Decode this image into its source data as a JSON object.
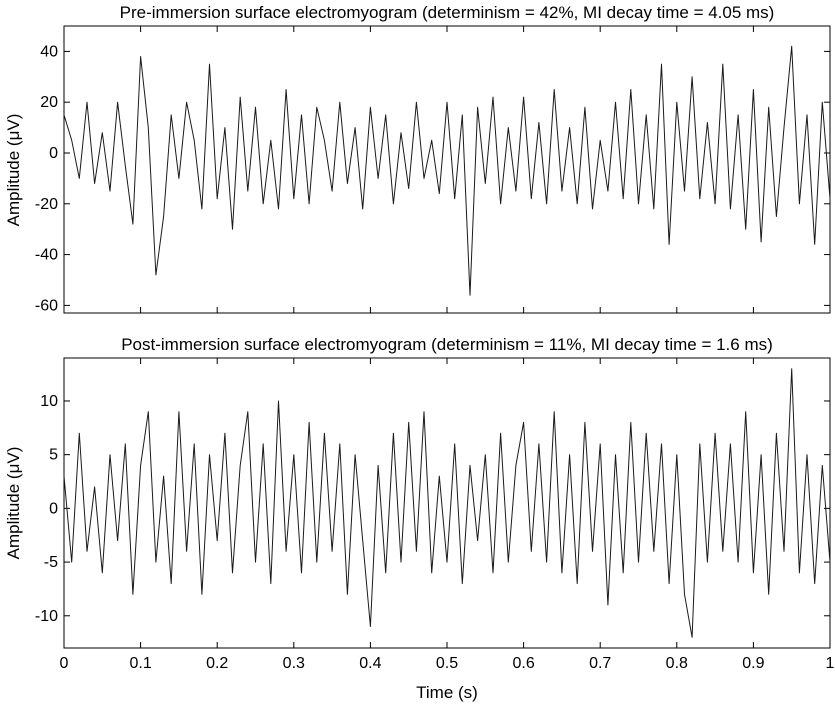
{
  "chart_data": [
    {
      "type": "line",
      "title": "Pre-immersion surface electromyogram (determinism = 42%, MI decay time = 4.05 ms)",
      "xlabel": "",
      "ylabel": "Amplitude (μV)",
      "xlim": [
        0,
        1
      ],
      "ylim": [
        -63,
        50
      ],
      "x_ticks": [
        0,
        0.1,
        0.2,
        0.3,
        0.4,
        0.5,
        0.6,
        0.7,
        0.8,
        0.9,
        1
      ],
      "x_tick_labels": [],
      "y_ticks": [
        -60,
        -40,
        -20,
        0,
        20,
        40
      ],
      "y_tick_labels": [
        "-60",
        "-40",
        "-20",
        "0",
        "20",
        "40"
      ],
      "grid": false,
      "series": [
        {
          "color": "#1a1a1a",
          "x": [
            0,
            0.01,
            0.02,
            0.03,
            0.04,
            0.05,
            0.06,
            0.07,
            0.08,
            0.09,
            0.1,
            0.11,
            0.12,
            0.13,
            0.14,
            0.15,
            0.16,
            0.17,
            0.18,
            0.19,
            0.2,
            0.21,
            0.22,
            0.23,
            0.24,
            0.25,
            0.26,
            0.27,
            0.28,
            0.29,
            0.3,
            0.31,
            0.32,
            0.33,
            0.34,
            0.35,
            0.36,
            0.37,
            0.38,
            0.39,
            0.4,
            0.41,
            0.42,
            0.43,
            0.44,
            0.45,
            0.46,
            0.47,
            0.48,
            0.49,
            0.5,
            0.51,
            0.52,
            0.53,
            0.54,
            0.55,
            0.56,
            0.57,
            0.58,
            0.59,
            0.6,
            0.61,
            0.62,
            0.63,
            0.64,
            0.65,
            0.66,
            0.67,
            0.68,
            0.69,
            0.7,
            0.71,
            0.72,
            0.73,
            0.74,
            0.75,
            0.76,
            0.77,
            0.78,
            0.79,
            0.8,
            0.81,
            0.82,
            0.83,
            0.84,
            0.85,
            0.86,
            0.87,
            0.88,
            0.89,
            0.9,
            0.91,
            0.92,
            0.93,
            0.94,
            0.95,
            0.96,
            0.97,
            0.98,
            0.99,
            1
          ],
          "y": [
            15,
            5,
            -10,
            20,
            -12,
            8,
            -15,
            20,
            -5,
            -28,
            38,
            10,
            -48,
            -25,
            15,
            -10,
            20,
            5,
            -22,
            35,
            -18,
            10,
            -30,
            22,
            -15,
            18,
            -20,
            5,
            -22,
            25,
            -18,
            15,
            -20,
            18,
            5,
            -15,
            20,
            -12,
            10,
            -22,
            18,
            -10,
            15,
            -20,
            8,
            -14,
            20,
            -10,
            5,
            -16,
            20,
            -18,
            15,
            -56,
            18,
            -12,
            22,
            -20,
            10,
            -15,
            22,
            -18,
            12,
            -20,
            25,
            -15,
            10,
            -20,
            18,
            -22,
            5,
            -15,
            20,
            -18,
            25,
            -20,
            15,
            -22,
            35,
            -36,
            20,
            -15,
            30,
            -18,
            12,
            -20,
            35,
            -22,
            15,
            -30,
            25,
            -35,
            18,
            -25,
            10,
            42,
            -20,
            15,
            -36,
            20,
            -18
          ]
        }
      ]
    },
    {
      "type": "line",
      "title": "Post-immersion surface electromyogram (determinism = 11%, MI decay time = 1.6 ms)",
      "xlabel": "Time (s)",
      "ylabel": "Amplitude (μV)",
      "xlim": [
        0,
        1
      ],
      "ylim": [
        -13,
        14
      ],
      "x_ticks": [
        0,
        0.1,
        0.2,
        0.3,
        0.4,
        0.5,
        0.6,
        0.7,
        0.8,
        0.9,
        1
      ],
      "x_tick_labels": [
        "0",
        "0.1",
        "0.2",
        "0.3",
        "0.4",
        "0.5",
        "0.6",
        "0.7",
        "0.8",
        "0.9",
        "1"
      ],
      "y_ticks": [
        -10,
        -5,
        0,
        5,
        10
      ],
      "y_tick_labels": [
        "-10",
        "-5",
        "0",
        "5",
        "10"
      ],
      "grid": false,
      "series": [
        {
          "color": "#1a1a1a",
          "x": [
            0,
            0.01,
            0.02,
            0.03,
            0.04,
            0.05,
            0.06,
            0.07,
            0.08,
            0.09,
            0.1,
            0.11,
            0.12,
            0.13,
            0.14,
            0.15,
            0.16,
            0.17,
            0.18,
            0.19,
            0.2,
            0.21,
            0.22,
            0.23,
            0.24,
            0.25,
            0.26,
            0.27,
            0.28,
            0.29,
            0.3,
            0.31,
            0.32,
            0.33,
            0.34,
            0.35,
            0.36,
            0.37,
            0.38,
            0.39,
            0.4,
            0.41,
            0.42,
            0.43,
            0.44,
            0.45,
            0.46,
            0.47,
            0.48,
            0.49,
            0.5,
            0.51,
            0.52,
            0.53,
            0.54,
            0.55,
            0.56,
            0.57,
            0.58,
            0.59,
            0.6,
            0.61,
            0.62,
            0.63,
            0.64,
            0.65,
            0.66,
            0.67,
            0.68,
            0.69,
            0.7,
            0.71,
            0.72,
            0.73,
            0.74,
            0.75,
            0.76,
            0.77,
            0.78,
            0.79,
            0.8,
            0.81,
            0.82,
            0.83,
            0.84,
            0.85,
            0.86,
            0.87,
            0.88,
            0.89,
            0.9,
            0.91,
            0.92,
            0.93,
            0.94,
            0.95,
            0.96,
            0.97,
            0.98,
            0.99,
            1
          ],
          "y": [
            3,
            -5,
            7,
            -4,
            2,
            -6,
            5,
            -3,
            6,
            -8,
            4,
            9,
            -5,
            3,
            -7,
            9,
            -4,
            6,
            -8,
            5,
            -3,
            7,
            -6,
            4,
            9,
            -5,
            6,
            -7,
            10,
            -4,
            5,
            -6,
            8,
            -5,
            7,
            -4,
            6,
            -8,
            5,
            -3,
            -11,
            4,
            -6,
            7,
            -5,
            8,
            -4,
            9,
            -6,
            3,
            -5,
            6,
            -7,
            4,
            -3,
            5,
            -6,
            7,
            -5,
            4,
            8,
            -4,
            6,
            -5,
            9,
            -6,
            5,
            -7,
            8,
            -4,
            6,
            -9,
            5,
            -6,
            8,
            -5,
            7,
            -4,
            6,
            -7,
            5,
            -8,
            -12,
            6,
            -5,
            7,
            -4,
            6,
            -5,
            9,
            -6,
            5,
            -8,
            7,
            -4,
            13,
            -6,
            5,
            -7,
            4,
            -5
          ]
        }
      ]
    }
  ]
}
